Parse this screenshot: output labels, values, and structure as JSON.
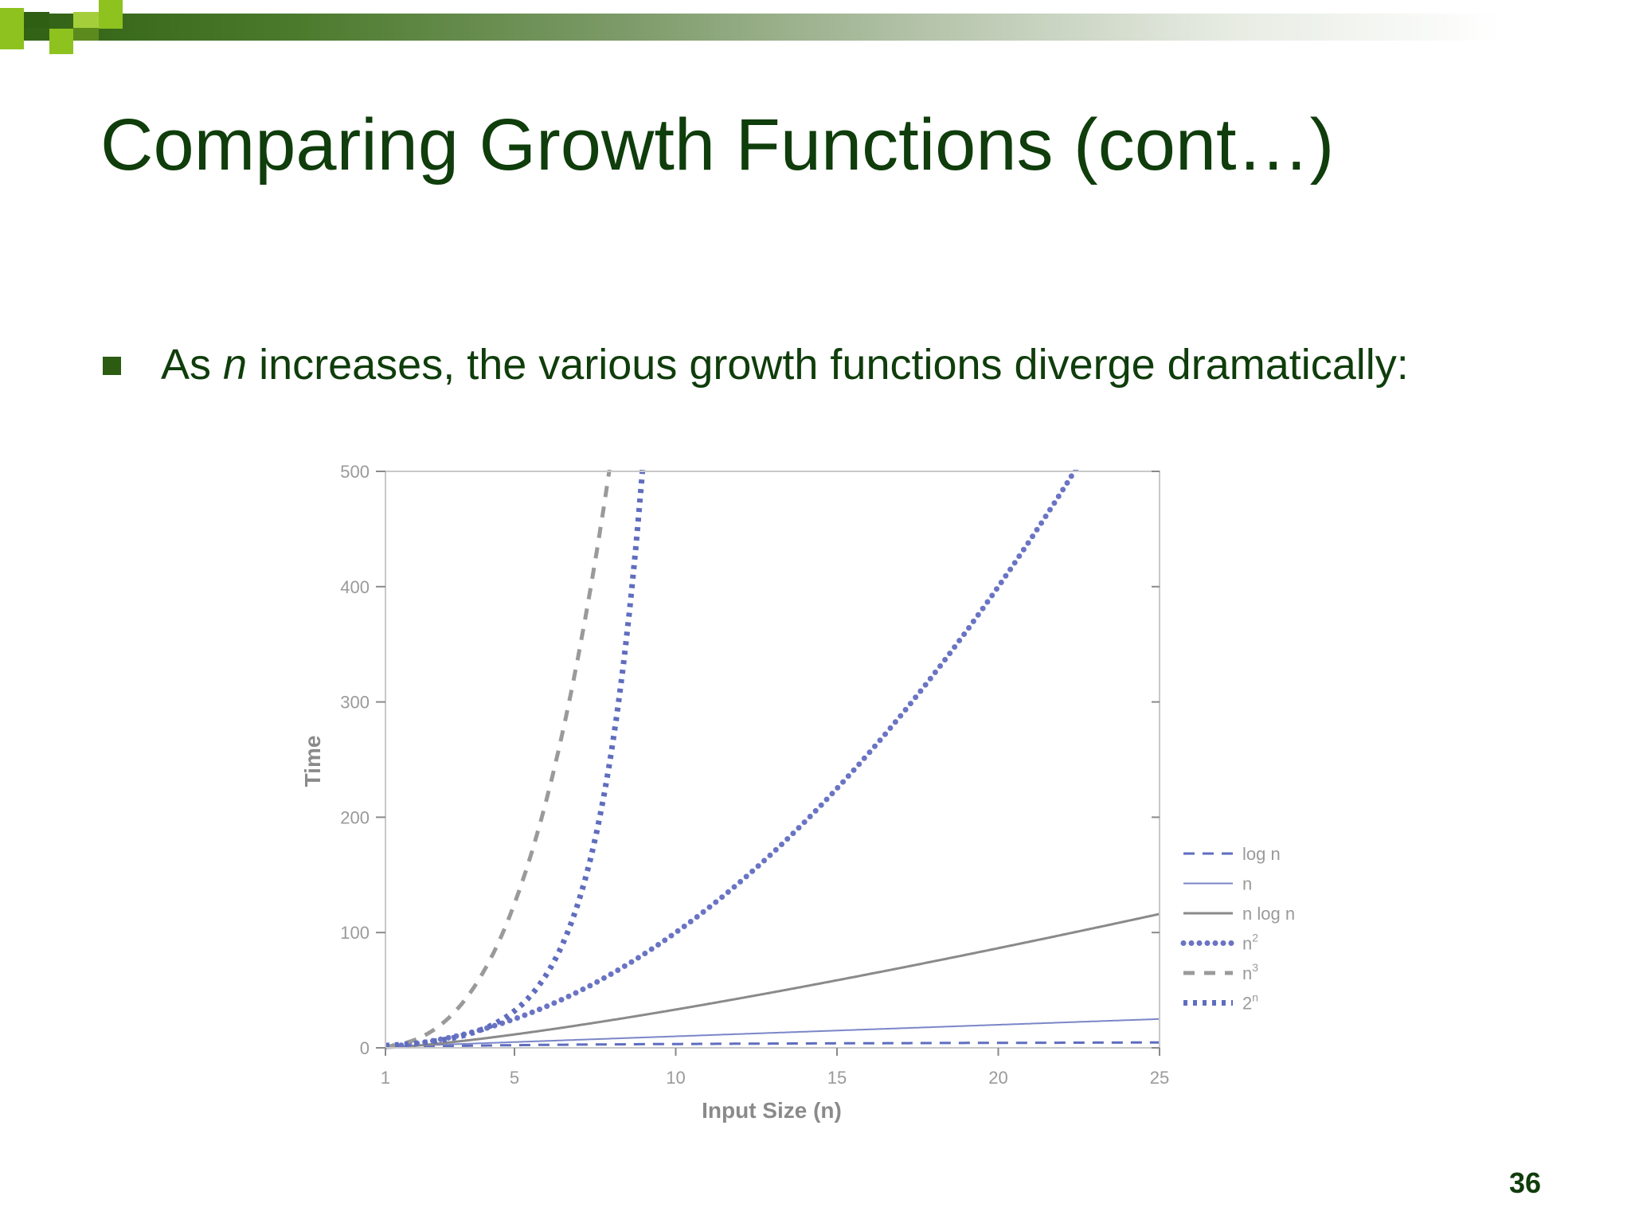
{
  "slide": {
    "title": "Comparing Growth Functions (cont…)",
    "bullet": {
      "prefix": "As ",
      "variable": "n",
      "suffix": " increases, the various growth functions diverge dramatically:"
    },
    "page_number": "36",
    "colors": {
      "title": "#0f3d0b",
      "bullet": "#2b5c12",
      "accent_green": "#8dc21f",
      "dark_green": "#2f5f12"
    }
  },
  "chart_data": {
    "type": "line",
    "xlabel": "Input Size (n)",
    "ylabel": "Time",
    "xlim": [
      1,
      25
    ],
    "ylim": [
      0,
      500
    ],
    "xticks": [
      1,
      5,
      10,
      15,
      20,
      25
    ],
    "yticks": [
      0,
      100,
      200,
      300,
      400,
      500
    ],
    "legend_position": "right",
    "log_base": 2,
    "series": [
      {
        "name": "log n",
        "function": "log n",
        "label_suffix": "",
        "style": "dash",
        "color": "#5f6dbf",
        "x": [
          1,
          5,
          10,
          15,
          20,
          25
        ],
        "y": [
          0,
          2.32,
          3.32,
          3.91,
          4.32,
          4.64
        ]
      },
      {
        "name": "n",
        "function": "n",
        "label_suffix": "",
        "style": "solid-thin",
        "color": "#7b86c8",
        "x": [
          1,
          5,
          10,
          15,
          20,
          25
        ],
        "y": [
          1,
          5,
          10,
          15,
          20,
          25
        ]
      },
      {
        "name": "n log n",
        "function": "n log n",
        "label_suffix": "",
        "style": "solid",
        "color": "#8a8a8a",
        "x": [
          1,
          5,
          10,
          15,
          20,
          25
        ],
        "y": [
          0,
          11.6,
          33.2,
          58.6,
          86.4,
          116.1
        ]
      },
      {
        "name": "n",
        "function": "n2",
        "label_suffix": "2",
        "style": "dot",
        "color": "#6a74c4",
        "x": [
          1,
          5,
          10,
          15,
          20,
          22.36
        ],
        "y": [
          1,
          25,
          100,
          225,
          400,
          500
        ]
      },
      {
        "name": "n",
        "function": "n3",
        "label_suffix": "3",
        "style": "dash-grey",
        "color": "#9a9a9a",
        "x": [
          1,
          5,
          7,
          7.94
        ],
        "y": [
          1,
          125,
          343,
          500
        ]
      },
      {
        "name": "2",
        "function": "2n",
        "label_suffix": "n",
        "style": "dot-bold",
        "color": "#5f6dbf",
        "x": [
          1,
          5,
          8,
          8.97
        ],
        "y": [
          2,
          32,
          256,
          500
        ]
      }
    ]
  }
}
